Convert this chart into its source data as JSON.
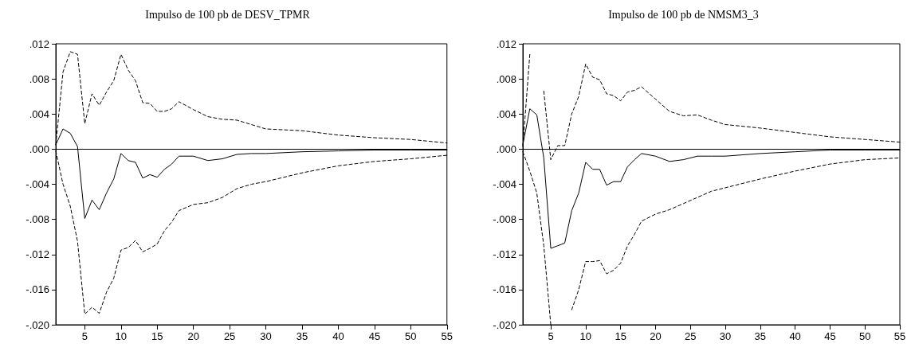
{
  "chart_data": [
    {
      "type": "line",
      "title": "Impulso de 100 pb de DESV_TPMR",
      "x": [
        1,
        2,
        3,
        4,
        5,
        6,
        7,
        8,
        9,
        10,
        11,
        12,
        13,
        14,
        15,
        16,
        17,
        18,
        20,
        22,
        24,
        26,
        28,
        30,
        35,
        40,
        45,
        50,
        55
      ],
      "xlim": [
        1,
        55
      ],
      "xticks": [
        5,
        10,
        15,
        20,
        25,
        30,
        35,
        40,
        45,
        50,
        55
      ],
      "ylim": [
        -0.02,
        0.012
      ],
      "yticks": [
        {
          "value": -0.02,
          "label": "-.020"
        },
        {
          "value": -0.016,
          "label": "-.016"
        },
        {
          "value": -0.012,
          "label": "-.012"
        },
        {
          "value": -0.008,
          "label": "-.008"
        },
        {
          "value": -0.004,
          "label": "-.004"
        },
        {
          "value": 0,
          "label": ".000"
        },
        {
          "value": 0.004,
          "label": ".004"
        },
        {
          "value": 0.008,
          "label": ".008"
        },
        {
          "value": 0.012,
          "label": ".012"
        }
      ],
      "ref_lines": [
        {
          "axis": "y",
          "value": 0,
          "color": "#000000"
        }
      ],
      "series": [
        {
          "color": "#000000",
          "line_style": "solid",
          "values": [
            0.0005,
            0.0023,
            0.0018,
            0.0003,
            -0.0079,
            -0.0058,
            -0.0069,
            -0.005,
            -0.0034,
            -0.0005,
            -0.0013,
            -0.0015,
            -0.0033,
            -0.0029,
            -0.0032,
            -0.0023,
            -0.0017,
            -0.0008,
            -0.0008,
            -0.0013,
            -0.0011,
            -0.0006,
            -0.0005,
            -0.0005,
            -0.0003,
            -0.0002,
            -0.0001,
            -0.0001,
            -0.0001
          ]
        },
        {
          "color": "#000000",
          "line_style": "dashed",
          "values": [
            0.0005,
            0.0088,
            0.0111,
            0.0108,
            0.0029,
            0.0063,
            0.005,
            0.0065,
            0.0078,
            0.0108,
            0.009,
            0.0078,
            0.0053,
            0.0052,
            0.0043,
            0.0043,
            0.0046,
            0.0054,
            0.0045,
            0.0037,
            0.0034,
            0.0033,
            0.0028,
            0.0023,
            0.0021,
            0.0016,
            0.0013,
            0.0011,
            0.0007
          ]
        },
        {
          "color": "#000000",
          "line_style": "dashed",
          "values": [
            -0.0002,
            -0.004,
            -0.0065,
            -0.0105,
            -0.0188,
            -0.018,
            -0.0187,
            -0.0163,
            -0.0147,
            -0.0115,
            -0.0112,
            -0.0104,
            -0.0117,
            -0.0113,
            -0.0108,
            -0.0093,
            -0.0083,
            -0.007,
            -0.0063,
            -0.0061,
            -0.0055,
            -0.0045,
            -0.004,
            -0.0037,
            -0.0027,
            -0.0019,
            -0.0014,
            -0.0011,
            -0.0007
          ]
        }
      ]
    },
    {
      "type": "line",
      "title": "Impulso de 100 pb de NMSM3_3",
      "x": [
        1,
        2,
        3,
        4,
        5,
        6,
        7,
        8,
        9,
        10,
        11,
        12,
        13,
        14,
        15,
        16,
        17,
        18,
        20,
        22,
        24,
        26,
        28,
        30,
        35,
        40,
        45,
        50,
        55
      ],
      "xlim": [
        1,
        55
      ],
      "xticks": [
        5,
        10,
        15,
        20,
        25,
        30,
        35,
        40,
        45,
        50,
        55
      ],
      "ylim": [
        -0.02,
        0.012
      ],
      "yticks": [
        {
          "value": -0.02,
          "label": "-.020"
        },
        {
          "value": -0.016,
          "label": "-.016"
        },
        {
          "value": -0.012,
          "label": "-.012"
        },
        {
          "value": -0.008,
          "label": "-.008"
        },
        {
          "value": -0.004,
          "label": "-.004"
        },
        {
          "value": 0,
          "label": ".000"
        },
        {
          "value": 0.004,
          "label": ".004"
        },
        {
          "value": 0.008,
          "label": ".008"
        },
        {
          "value": 0.012,
          "label": ".012"
        }
      ],
      "ref_lines": [
        {
          "axis": "y",
          "value": 0,
          "color": "#000000"
        }
      ],
      "series": [
        {
          "color": "#000000",
          "line_style": "solid",
          "values": [
            0.0005,
            0.0046,
            0.0039,
            -0.001,
            -0.0113,
            -0.011,
            -0.0107,
            -0.007,
            -0.005,
            -0.0015,
            -0.0023,
            -0.0023,
            -0.0041,
            -0.0037,
            -0.0037,
            -0.002,
            -0.0012,
            -0.0005,
            -0.0008,
            -0.0014,
            -0.0012,
            -0.0008,
            -0.0008,
            -0.0008,
            -0.0005,
            -0.0003,
            -0.0001,
            -0.0001,
            -0.0001
          ]
        },
        {
          "color": "#000000",
          "line_style": "dashed",
          "values": [
            0.0003,
            0.0108,
            null,
            0.0066,
            -0.0012,
            0.0004,
            0.0004,
            0.004,
            0.006,
            0.0097,
            0.0082,
            0.0079,
            0.0063,
            0.0061,
            0.0055,
            0.0065,
            0.0067,
            0.0071,
            0.0057,
            0.0043,
            0.0038,
            0.0039,
            0.0033,
            0.0028,
            0.0024,
            0.0019,
            0.0014,
            0.0011,
            0.0008
          ]
        },
        {
          "color": "#000000",
          "line_style": "dashed",
          "values": [
            -0.0003,
            -0.0025,
            -0.005,
            -0.011,
            -0.02,
            null,
            null,
            -0.0183,
            -0.016,
            -0.0128,
            -0.0128,
            -0.0127,
            -0.0142,
            -0.0138,
            -0.013,
            -0.011,
            -0.0097,
            -0.0082,
            -0.0074,
            -0.0069,
            -0.0062,
            -0.0055,
            -0.0048,
            -0.0044,
            -0.0034,
            -0.0025,
            -0.0017,
            -0.0012,
            -0.001
          ]
        }
      ]
    }
  ]
}
